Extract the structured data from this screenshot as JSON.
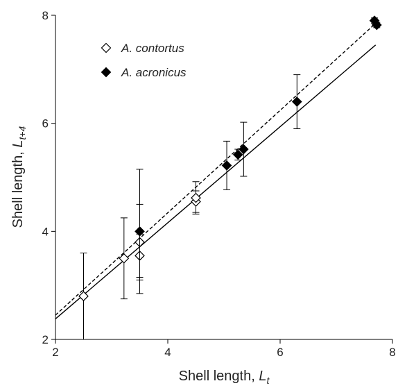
{
  "chart_data": {
    "type": "scatter",
    "xlabel": {
      "text": "Shell length, ",
      "var": "L",
      "sub": "t"
    },
    "ylabel": {
      "text": "Shell length, ",
      "var": "L",
      "sub": "t+4"
    },
    "xlim": [
      2,
      8
    ],
    "ylim": [
      2,
      8
    ],
    "xticks": [
      2,
      4,
      6,
      8
    ],
    "yticks": [
      2,
      4,
      6,
      8
    ],
    "series": [
      {
        "name": "A. contortus",
        "marker": "open",
        "color": "#000",
        "x": [
          2.5,
          3.22,
          3.5,
          3.5,
          4.5,
          4.5
        ],
        "values": [
          2.8,
          3.5,
          3.55,
          3.8,
          4.55,
          4.62
        ],
        "errors": [
          0.8,
          0.75,
          0.4,
          0.7,
          0.2,
          0.3
        ]
      },
      {
        "name": "A. acronicus",
        "marker": "filled",
        "color": "#000",
        "x": [
          3.5,
          5.05,
          5.25,
          5.35,
          6.3,
          7.68,
          7.72
        ],
        "values": [
          4.0,
          5.22,
          5.42,
          5.52,
          6.4,
          7.9,
          7.82
        ],
        "errors": [
          1.15,
          0.45,
          0.1,
          0.5,
          0.5,
          0.05,
          0.05
        ]
      }
    ],
    "lines": [
      {
        "style": "solid",
        "color": "#000",
        "x": [
          2,
          7.7
        ],
        "values": [
          2.38,
          7.45
        ]
      },
      {
        "style": "dashed",
        "color": "#000",
        "x": [
          2,
          7.7
        ],
        "values": [
          2.45,
          7.85
        ]
      }
    ]
  }
}
